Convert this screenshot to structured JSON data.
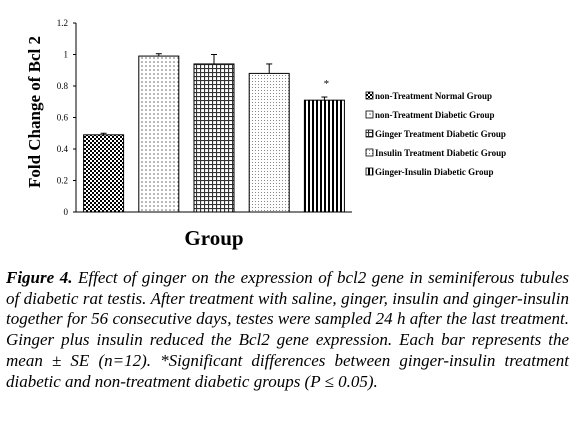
{
  "chart_data": {
    "type": "bar",
    "categories": [
      "non-Treatment Normal Group",
      "non-Treatment Diabetic Group",
      "Ginger Treatment Diabetic Group",
      "Insulin Treatment Diabetic Group",
      "Ginger-Insulin Diabetic Group"
    ],
    "values": [
      0.49,
      0.99,
      0.94,
      0.88,
      0.71
    ],
    "errors": [
      0.01,
      0.015,
      0.06,
      0.06,
      0.02
    ],
    "annotations": [
      {
        "category": "Ginger-Insulin Diabetic Group",
        "text": "*"
      }
    ],
    "title": "",
    "xlabel": "Group",
    "ylabel": "Fold Change of Bcl 2",
    "ylim": [
      0,
      1.2
    ],
    "yticks": [
      "0",
      "0.2",
      "0.4",
      "0.6",
      "0.8",
      "1",
      "1.2"
    ],
    "grid": false,
    "legend_position": "right",
    "patterns": [
      "checker",
      "dots",
      "grid",
      "crosshatch",
      "vstripes"
    ]
  },
  "caption": {
    "label": "Figure 4.",
    "text": "Effect of ginger on the expression of bcl2 gene in seminiferous tubules of diabetic rat testis. After treatment with saline, ginger, insulin and ginger-insulin together for 56 consecutive days, testes were sampled 24 h after the last treatment. Ginger plus insulin reduced the Bcl2 gene expression. Each bar represents the mean ± SE (n=12). *Significant differences between ginger-insulin treatment diabetic and non-treatment diabetic groups (P ≤ 0.05)."
  }
}
